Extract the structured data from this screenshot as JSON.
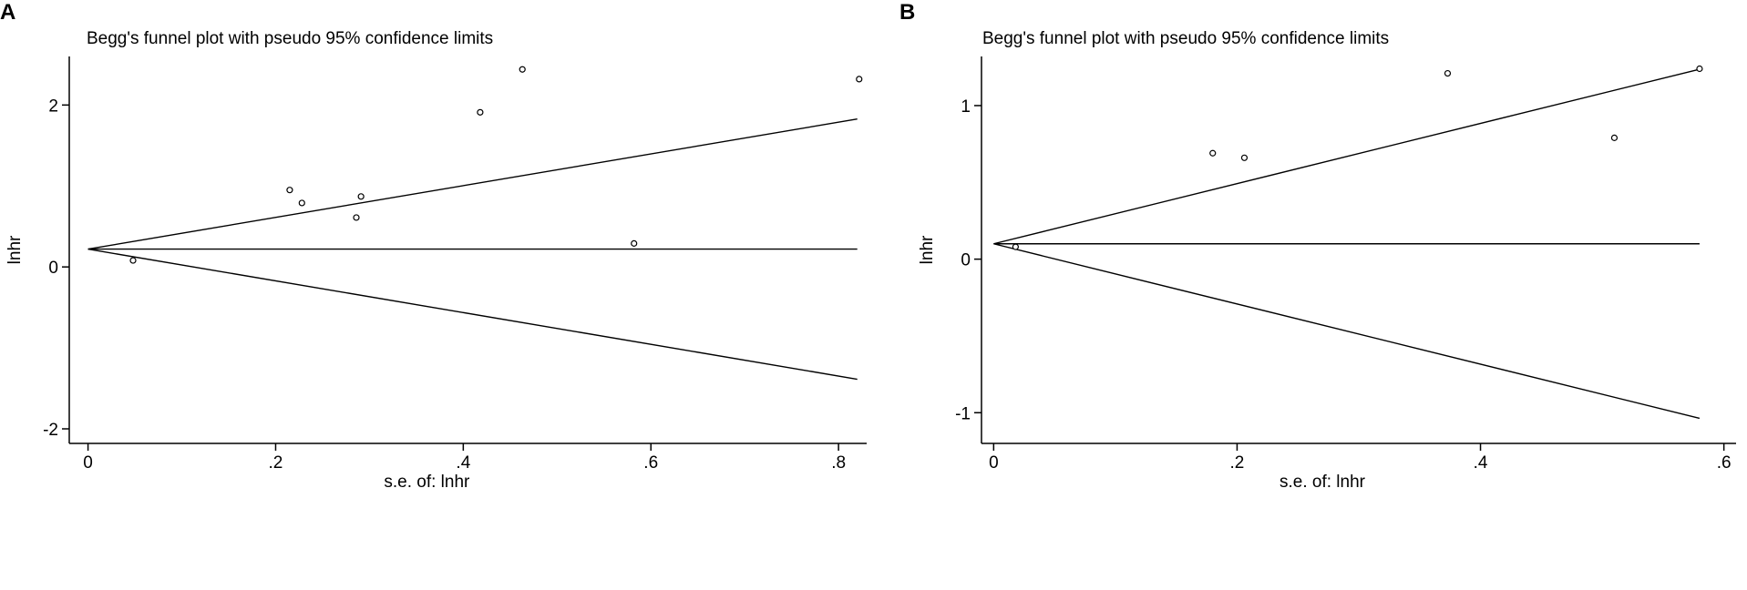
{
  "chart_data": [
    {
      "panel_label": "A",
      "type": "scatter",
      "title": "Begg's funnel plot with pseudo 95% confidence limits",
      "xlabel": "s.e. of: lnhr",
      "ylabel": "lnhr",
      "xlim": [
        -0.02,
        0.83
      ],
      "ylim": [
        -2.18,
        2.6
      ],
      "xticks": [
        0,
        0.2,
        0.4,
        0.6,
        0.8
      ],
      "xtick_labels": [
        "0",
        ".2",
        ".4",
        ".6",
        ".8"
      ],
      "yticks": [
        -2,
        0,
        2
      ],
      "ytick_labels": [
        "-2",
        "0",
        "2"
      ],
      "pooled_estimate": 0.22,
      "max_se": 0.82,
      "points": [
        {
          "x": 0.048,
          "y": 0.08
        },
        {
          "x": 0.215,
          "y": 0.95
        },
        {
          "x": 0.228,
          "y": 0.79
        },
        {
          "x": 0.286,
          "y": 0.61
        },
        {
          "x": 0.291,
          "y": 0.87
        },
        {
          "x": 0.418,
          "y": 1.91
        },
        {
          "x": 0.463,
          "y": 2.44
        },
        {
          "x": 0.582,
          "y": 0.29
        },
        {
          "x": 0.822,
          "y": 2.32
        }
      ]
    },
    {
      "panel_label": "B",
      "type": "scatter",
      "title": "Begg's funnel plot with pseudo 95% confidence limits",
      "xlabel": "s.e. of: lnhr",
      "ylabel": "lnhr",
      "xlim": [
        -0.01,
        0.61
      ],
      "ylim": [
        -1.2,
        1.32
      ],
      "xticks": [
        0,
        0.2,
        0.4,
        0.6
      ],
      "xtick_labels": [
        "0",
        ".2",
        ".4",
        ".6"
      ],
      "yticks": [
        -1,
        0,
        1
      ],
      "ytick_labels": [
        "-1",
        "0",
        "1"
      ],
      "pooled_estimate": 0.1,
      "max_se": 0.58,
      "points": [
        {
          "x": 0.018,
          "y": 0.08
        },
        {
          "x": 0.18,
          "y": 0.69
        },
        {
          "x": 0.206,
          "y": 0.66
        },
        {
          "x": 0.373,
          "y": 1.21
        },
        {
          "x": 0.51,
          "y": 0.79
        },
        {
          "x": 0.58,
          "y": 1.24
        }
      ]
    }
  ]
}
